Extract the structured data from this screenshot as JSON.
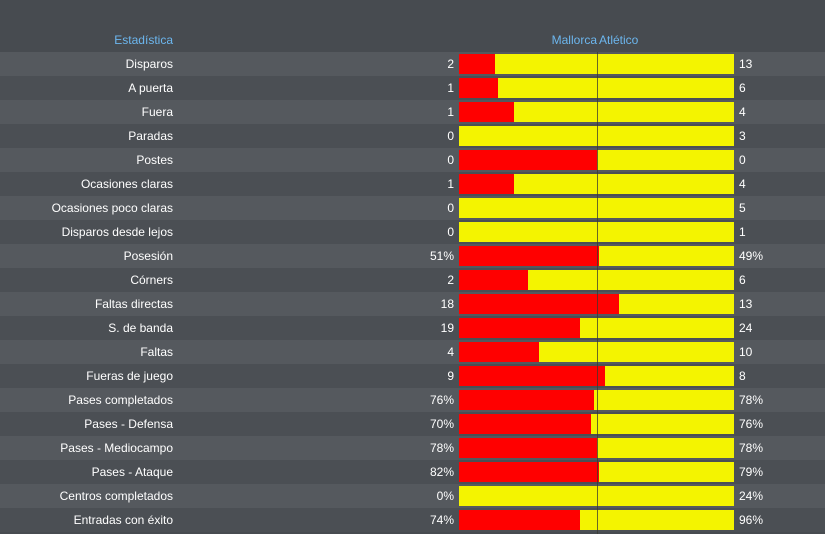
{
  "header": {
    "stat_label": "Estadística",
    "home_team": "Mallorca",
    "away_team": "Atlético"
  },
  "colors": {
    "home_bar": "#ff0000",
    "away_bar": "#f4f400",
    "header_text": "#6cb6ee"
  },
  "stats": [
    {
      "label": "Disparos",
      "home": "2",
      "away": "13",
      "home_share": 0.13
    },
    {
      "label": "A puerta",
      "home": "1",
      "away": "6",
      "home_share": 0.14
    },
    {
      "label": "Fuera",
      "home": "1",
      "away": "4",
      "home_share": 0.2
    },
    {
      "label": "Paradas",
      "home": "0",
      "away": "3",
      "home_share": 0.0
    },
    {
      "label": "Postes",
      "home": "0",
      "away": "0",
      "home_share": 0.5
    },
    {
      "label": "Ocasiones claras",
      "home": "1",
      "away": "4",
      "home_share": 0.2
    },
    {
      "label": "Ocasiones poco claras",
      "home": "0",
      "away": "5",
      "home_share": 0.0
    },
    {
      "label": "Disparos desde lejos",
      "home": "0",
      "away": "1",
      "home_share": 0.0
    },
    {
      "label": "Posesión",
      "home": "51%",
      "away": "49%",
      "home_share": 0.51
    },
    {
      "label": "Córners",
      "home": "2",
      "away": "6",
      "home_share": 0.25
    },
    {
      "label": "Faltas directas",
      "home": "18",
      "away": "13",
      "home_share": 0.58
    },
    {
      "label": "S. de banda",
      "home": "19",
      "away": "24",
      "home_share": 0.44
    },
    {
      "label": "Faltas",
      "home": "4",
      "away": "10",
      "home_share": 0.29
    },
    {
      "label": "Fueras de juego",
      "home": "9",
      "away": "8",
      "home_share": 0.53
    },
    {
      "label": "Pases completados",
      "home": "76%",
      "away": "78%",
      "home_share": 0.49
    },
    {
      "label": "Pases - Defensa",
      "home": "70%",
      "away": "76%",
      "home_share": 0.48
    },
    {
      "label": "Pases - Mediocampo",
      "home": "78%",
      "away": "78%",
      "home_share": 0.5
    },
    {
      "label": "Pases - Ataque",
      "home": "82%",
      "away": "79%",
      "home_share": 0.51
    },
    {
      "label": "Centros completados",
      "home": "0%",
      "away": "24%",
      "home_share": 0.0
    },
    {
      "label": "Entradas con éxito",
      "home": "74%",
      "away": "96%",
      "home_share": 0.44
    }
  ]
}
